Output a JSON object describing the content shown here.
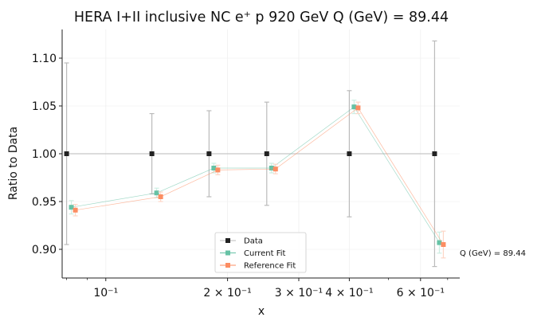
{
  "chart_data": {
    "type": "scatter",
    "title": "HERA I+II inclusive NC e⁺ p 920 GeV Q (GeV) = 89.44",
    "xlabel": "x",
    "ylabel": "Ratio to Data",
    "xscale": "log",
    "xlim": [
      0.078,
      0.75
    ],
    "ylim": [
      0.87,
      1.13
    ],
    "yticks": [
      0.9,
      0.95,
      1.0,
      1.05,
      1.1
    ],
    "ytick_labels": [
      "0.90",
      "0.95",
      "1.00",
      "1.05",
      "1.10"
    ],
    "xticks": [
      {
        "value": 0.1,
        "label": "10⁻¹"
      },
      {
        "value": 0.2,
        "label": "2 × 10⁻¹"
      },
      {
        "value": 0.3,
        "label": "3 × 10⁻¹"
      },
      {
        "value": 0.4,
        "label": "4 × 10⁻¹"
      },
      {
        "value": 0.6,
        "label": "6 × 10⁻¹"
      }
    ],
    "grid": true,
    "legend_position": "lower-center",
    "annotation": "Q (GeV) = 89.44",
    "series": [
      {
        "name": "Data",
        "color": "#222222",
        "marker": "square",
        "x": [
          0.08,
          0.13,
          0.18,
          0.25,
          0.4,
          0.65
        ],
        "y": [
          1.0,
          1.0,
          1.0,
          1.0,
          1.0,
          1.0
        ],
        "err": [
          0.095,
          0.042,
          0.045,
          0.054,
          0.066,
          0.118
        ]
      },
      {
        "name": "Current Fit",
        "color": "#66c2a5",
        "marker": "square",
        "x": [
          0.08,
          0.13,
          0.18,
          0.25,
          0.4,
          0.65
        ],
        "y": [
          0.944,
          0.959,
          0.985,
          0.985,
          1.049,
          0.907
        ],
        "err": [
          0.007,
          0.005,
          0.005,
          0.005,
          0.007,
          0.011
        ]
      },
      {
        "name": "Reference Fit",
        "color": "#fc8d62",
        "marker": "square",
        "x": [
          0.08,
          0.13,
          0.18,
          0.25,
          0.4,
          0.65
        ],
        "y": [
          0.941,
          0.955,
          0.983,
          0.984,
          1.048,
          0.905
        ],
        "err": [
          0.006,
          0.005,
          0.005,
          0.005,
          0.006,
          0.014
        ]
      }
    ]
  }
}
